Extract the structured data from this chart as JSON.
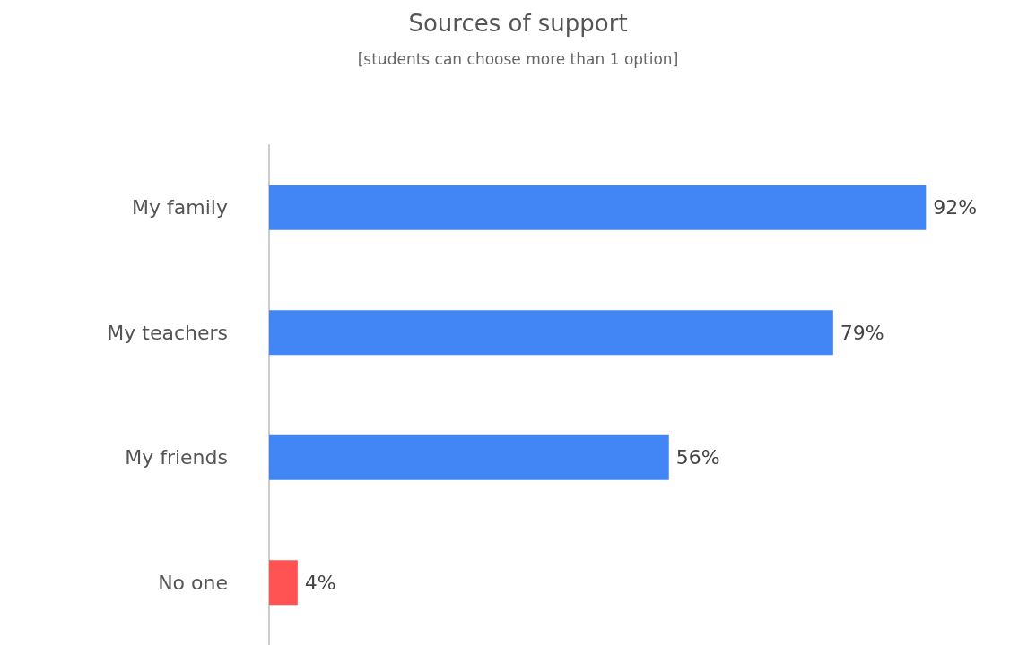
{
  "chart_data": {
    "type": "bar",
    "orientation": "horizontal",
    "title": "Sources of support",
    "subtitle": "[students can choose more than 1 option]",
    "categories": [
      "My family",
      "My teachers",
      "My friends",
      "No one"
    ],
    "values": [
      92,
      79,
      56,
      4
    ],
    "colors": [
      "#4285f4",
      "#4285f4",
      "#4285f4",
      "#ff5252"
    ],
    "value_labels": [
      "92%",
      "79%",
      "56%",
      "4%"
    ],
    "tick_labels": "y",
    "grid": false
  }
}
